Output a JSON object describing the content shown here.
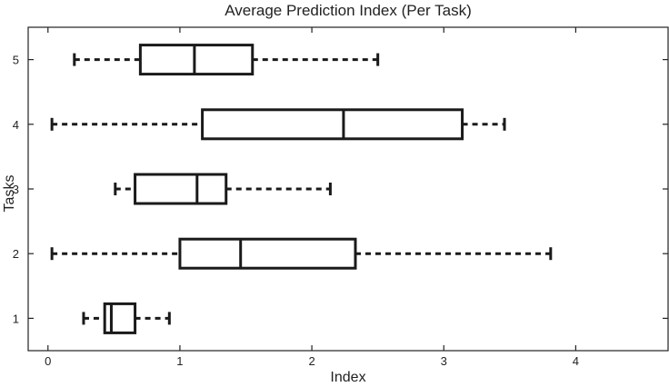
{
  "chart_data": {
    "type": "boxplot",
    "title": "Average Prediction Index (Per Task)",
    "xlabel": "Index",
    "ylabel": "Tasks",
    "xlim": [
      -0.15,
      4.7
    ],
    "ylim": [
      0.5,
      5.5
    ],
    "x_ticks": [
      0,
      1,
      2,
      3,
      4
    ],
    "y_ticks": [
      1,
      2,
      3,
      4,
      5
    ],
    "orientation": "horizontal",
    "grid": false,
    "series": [
      {
        "task": 1,
        "min": 0.27,
        "q1": 0.43,
        "median": 0.48,
        "q3": 0.66,
        "max": 0.92
      },
      {
        "task": 2,
        "min": 0.03,
        "q1": 1.0,
        "median": 1.46,
        "q3": 2.33,
        "max": 3.81
      },
      {
        "task": 3,
        "min": 0.51,
        "q1": 0.66,
        "median": 1.13,
        "q3": 1.35,
        "max": 2.14
      },
      {
        "task": 4,
        "min": 0.03,
        "q1": 1.17,
        "median": 2.24,
        "q3": 3.14,
        "max": 3.46
      },
      {
        "task": 5,
        "min": 0.2,
        "q1": 0.7,
        "median": 1.11,
        "q3": 1.55,
        "max": 2.5
      }
    ]
  }
}
